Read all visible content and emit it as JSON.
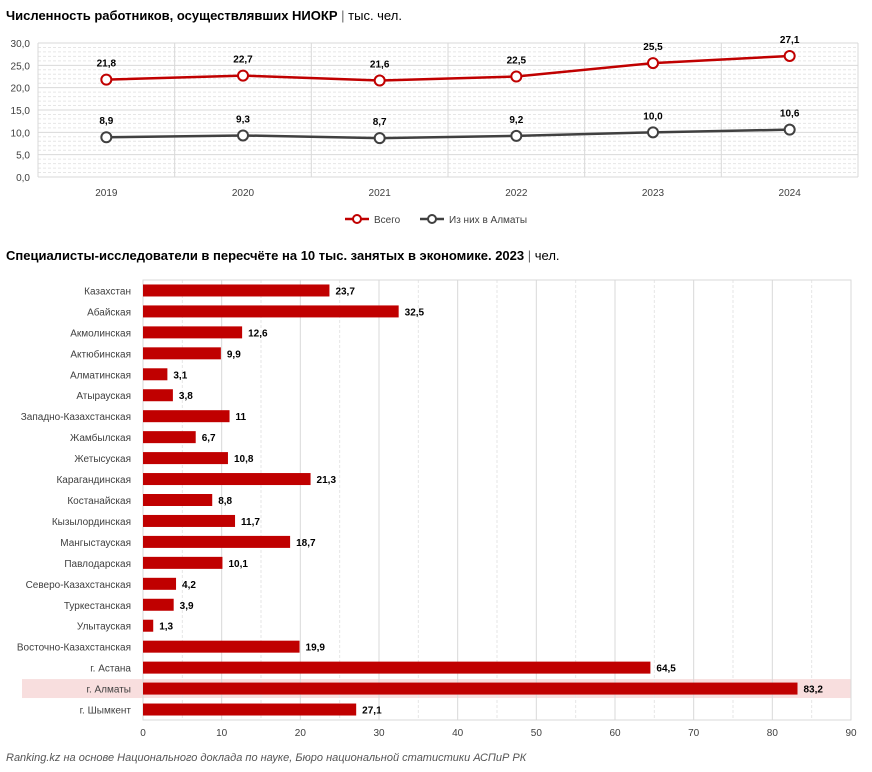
{
  "chart_data": [
    {
      "type": "line",
      "title": "Численность работников, осуществлявших НИОКР",
      "unit": "тыс. чел.",
      "categories": [
        "2019",
        "2020",
        "2021",
        "2022",
        "2023",
        "2024"
      ],
      "ylim": [
        0,
        30
      ],
      "yticks": [
        "0,0",
        "5,0",
        "10,0",
        "15,0",
        "20,0",
        "25,0",
        "30,0"
      ],
      "series": [
        {
          "name": "Всего",
          "color": "#c00000",
          "values": [
            21.8,
            22.7,
            21.6,
            22.5,
            25.5,
            27.1
          ],
          "labels": [
            "21,8",
            "22,7",
            "21,6",
            "22,5",
            "25,5",
            "27,1"
          ]
        },
        {
          "name": "Из них в Алматы",
          "color": "#404040",
          "values": [
            8.9,
            9.3,
            8.7,
            9.2,
            10.0,
            10.6
          ],
          "labels": [
            "8,9",
            "9,3",
            "8,7",
            "9,2",
            "10,0",
            "10,6"
          ]
        }
      ],
      "legend": "bottom",
      "grid": true
    },
    {
      "type": "bar",
      "orientation": "horizontal",
      "title": "Специалисты-исследователи в пересчёте на 10 тыс. занятых в экономике. 2023",
      "unit": "чел.",
      "color": "#c00000",
      "highlight": "г. Алматы",
      "highlight_color": "#f8dede",
      "xlim": [
        0,
        90
      ],
      "xticks": [
        "0",
        "10",
        "20",
        "30",
        "40",
        "50",
        "60",
        "70",
        "80",
        "90"
      ],
      "categories": [
        "Казахстан",
        "Абайская",
        "Акмолинская",
        "Актюбинская",
        "Алматинская",
        "Атырауская",
        "Западно-Казахстанская",
        "Жамбылская",
        "Жетысуская",
        "Карагандинская",
        "Костанайская",
        "Кызылординская",
        "Мангыстауская",
        "Павлодарская",
        "Северо-Казахстанская",
        "Туркестанская",
        "Улытауская",
        "Восточно-Казахстанская",
        "г. Астана",
        "г. Алматы",
        "г. Шымкент"
      ],
      "values": [
        23.7,
        32.5,
        12.6,
        9.9,
        3.1,
        3.8,
        11,
        6.7,
        10.8,
        21.3,
        8.8,
        11.7,
        18.7,
        10.1,
        4.2,
        3.9,
        1.3,
        19.9,
        64.5,
        83.2,
        27.1
      ],
      "labels": [
        "23,7",
        "32,5",
        "12,6",
        "9,9",
        "3,1",
        "3,8",
        "11",
        "6,7",
        "10,8",
        "21,3",
        "8,8",
        "11,7",
        "18,7",
        "10,1",
        "4,2",
        "3,9",
        "1,3",
        "19,9",
        "64,5",
        "83,2",
        "27,1"
      ],
      "grid": true
    }
  ],
  "source": "Ranking.kz на основе Национального доклада по науке, Бюро национальной статистики АСПиР РК"
}
